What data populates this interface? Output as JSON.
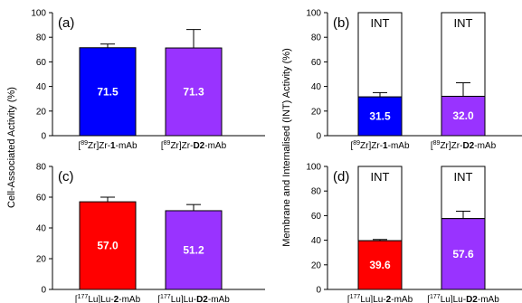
{
  "ylabels": {
    "left": "Cell-Associated Activity (%)",
    "right": "Membrane and Internalised (INT) Activity (%)"
  },
  "chart_data": [
    {
      "type": "bar",
      "panel": "(a)",
      "ylim": [
        0,
        100
      ],
      "yticks": [
        "0",
        "20",
        "40",
        "60",
        "80",
        "100"
      ],
      "categories": [
        {
          "pre": "[",
          "sup": "89",
          "mid": "Zr]Zr-",
          "bold": "1",
          "post": "-mAb"
        },
        {
          "pre": "[",
          "sup": "89",
          "mid": "Zr]Zr-",
          "bold": "D2",
          "post": "-mAb"
        }
      ],
      "values": [
        71.5,
        71.3
      ],
      "value_labels": [
        "71.5",
        "71.3"
      ],
      "errors": [
        3,
        15
      ],
      "colors": [
        "#0000ff",
        "#9933ff"
      ],
      "stacked_total": null,
      "stack_label": null
    },
    {
      "type": "bar",
      "panel": "(b)",
      "ylim": [
        0,
        100
      ],
      "yticks": [
        "0",
        "20",
        "40",
        "60",
        "80",
        "100"
      ],
      "categories": [
        {
          "pre": "[",
          "sup": "89",
          "mid": "Zr]Zr-",
          "bold": "1",
          "post": "-mAb"
        },
        {
          "pre": "[",
          "sup": "89",
          "mid": "Zr]Zr-",
          "bold": "D2",
          "post": "-mAb"
        }
      ],
      "values": [
        31.5,
        32.0
      ],
      "value_labels": [
        "31.5",
        "32.0"
      ],
      "errors": [
        3.5,
        11
      ],
      "colors": [
        "#0000ff",
        "#9933ff"
      ],
      "stacked_total": 100,
      "stack_label": "INT"
    },
    {
      "type": "bar",
      "panel": "(c)",
      "ylim": [
        0,
        80
      ],
      "yticks": [
        "0",
        "20",
        "40",
        "60",
        "80"
      ],
      "categories": [
        {
          "pre": "[",
          "sup": "177",
          "mid": "Lu]Lu-",
          "bold": "2",
          "post": "-mAb"
        },
        {
          "pre": "[",
          "sup": "177",
          "mid": "Lu]Lu-",
          "bold": "D2",
          "post": "-mAb"
        }
      ],
      "values": [
        57.0,
        51.2
      ],
      "value_labels": [
        "57.0",
        "51.2"
      ],
      "errors": [
        3,
        4
      ],
      "colors": [
        "#ff0000",
        "#9933ff"
      ],
      "stacked_total": null,
      "stack_label": null
    },
    {
      "type": "bar",
      "panel": "(d)",
      "ylim": [
        0,
        100
      ],
      "yticks": [
        "0",
        "20",
        "40",
        "60",
        "80",
        "100"
      ],
      "categories": [
        {
          "pre": "[",
          "sup": "177",
          "mid": "Lu]Lu-",
          "bold": "2",
          "post": "-mAb"
        },
        {
          "pre": "[",
          "sup": "177",
          "mid": "Lu]Lu-",
          "bold": "D2",
          "post": "-mAb"
        }
      ],
      "values": [
        39.6,
        57.6
      ],
      "value_labels": [
        "39.6",
        "57.6"
      ],
      "errors": [
        1,
        6
      ],
      "colors": [
        "#ff0000",
        "#9933ff"
      ],
      "stacked_total": 100,
      "stack_label": "INT"
    }
  ]
}
